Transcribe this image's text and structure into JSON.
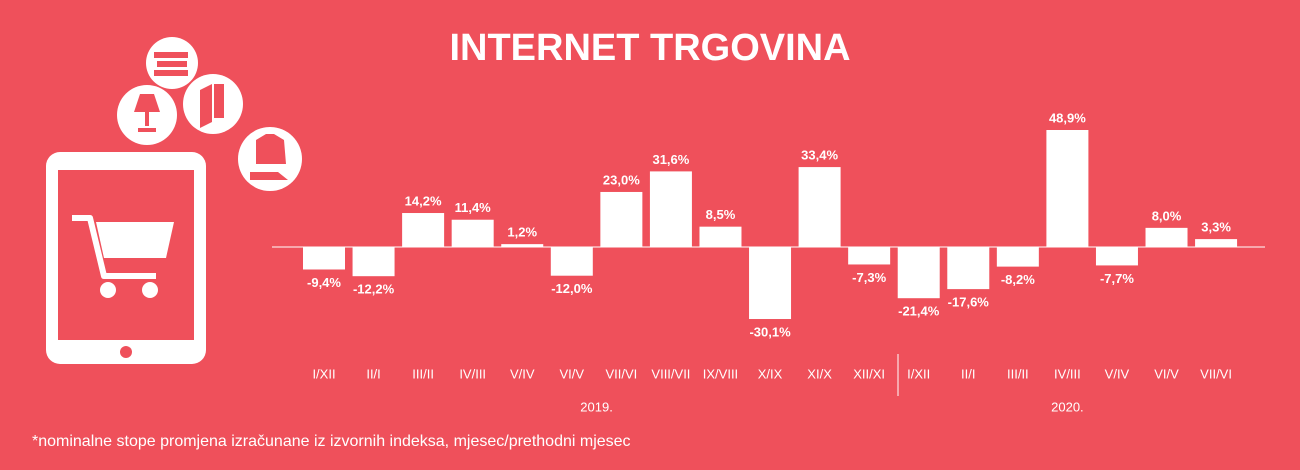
{
  "chart_data": {
    "type": "bar",
    "title": "INTERNET TRGOVINA",
    "categories": [
      "I/XII",
      "II/I",
      "III/II",
      "IV/III",
      "V/IV",
      "VI/V",
      "VII/VI",
      "VIII/VII",
      "IX/VIII",
      "X/IX",
      "XI/X",
      "XII/XI",
      "I/XII",
      "II/I",
      "III/II",
      "IV/III",
      "V/IV",
      "VI/V",
      "VII/VI"
    ],
    "values": [
      -9.4,
      -12.2,
      14.2,
      11.4,
      1.2,
      -12.0,
      23.0,
      31.6,
      8.5,
      -30.1,
      33.4,
      -7.3,
      -21.4,
      -17.6,
      -8.2,
      48.9,
      -7.7,
      8.0,
      3.3
    ],
    "value_labels": [
      "-9,4%",
      "-12,2%",
      "14,2%",
      "11,4%",
      "1,2%",
      "-12,0%",
      "23,0%",
      "31,6%",
      "8,5%",
      "-30,1%",
      "33,4%",
      "-7,3%",
      "-21,4%",
      "-17,6%",
      "-8,2%",
      "48,9%",
      "-7,7%",
      "8,0%",
      "3,3%"
    ],
    "group_labels": [
      "2019.",
      "2020."
    ],
    "color": "#ffffff",
    "footnote": "*nominalne stope promjena izračunane iz izvornih indeksa, mjesec/prethodni mjesec"
  }
}
